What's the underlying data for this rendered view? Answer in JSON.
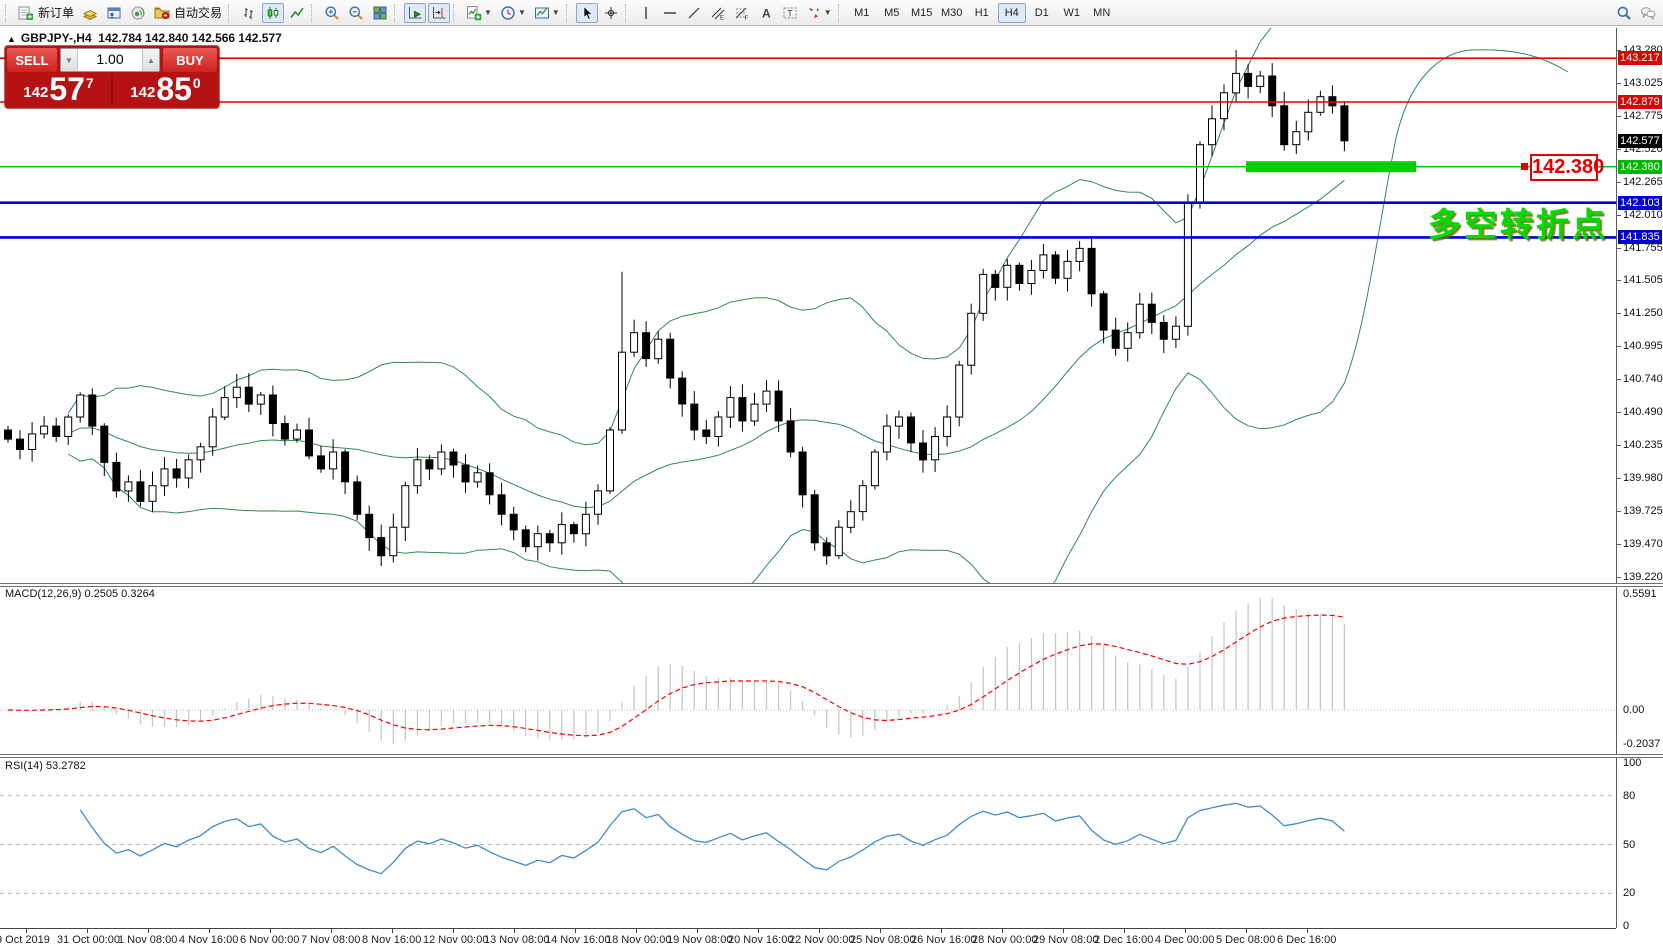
{
  "toolbar": {
    "groups": [
      {
        "items": [
          {
            "icon": "new-order",
            "label": "新订单",
            "name": "new-order-button"
          },
          {
            "icon": "market-watch",
            "name": "market-watch-button"
          },
          {
            "icon": "data-window",
            "name": "data-window-button"
          },
          {
            "icon": "navigator",
            "name": "navigator-button"
          },
          {
            "icon": "autotrading",
            "label": "自动交易",
            "name": "autotrading-button"
          }
        ]
      },
      {
        "items": [
          {
            "icon": "bar-chart",
            "name": "bar-chart-button"
          },
          {
            "icon": "candlesticks",
            "name": "candlestick-button",
            "active": true
          },
          {
            "icon": "line-chart",
            "name": "line-chart-button"
          }
        ]
      },
      {
        "items": [
          {
            "icon": "zoom-in",
            "name": "zoom-in-button"
          },
          {
            "icon": "zoom-out",
            "name": "zoom-out-button"
          },
          {
            "icon": "tile-windows",
            "name": "tile-windows-button"
          }
        ]
      },
      {
        "items": [
          {
            "icon": "auto-scroll",
            "name": "auto-scroll-button",
            "active": true
          },
          {
            "icon": "chart-shift",
            "name": "chart-shift-button",
            "active": true
          }
        ]
      },
      {
        "items": [
          {
            "icon": "indicators",
            "name": "indicators-button",
            "dropdown": true
          },
          {
            "icon": "periods",
            "name": "periods-button",
            "dropdown": true
          },
          {
            "icon": "templates",
            "name": "templates-button",
            "dropdown": true
          }
        ]
      },
      {
        "items": [
          {
            "icon": "cursor",
            "name": "cursor-button",
            "active": true
          },
          {
            "icon": "crosshair",
            "name": "crosshair-button"
          }
        ]
      },
      {
        "items": [
          {
            "icon": "vertical-line",
            "name": "vertical-line-button"
          },
          {
            "icon": "horizontal-line",
            "name": "horizontal-line-button"
          },
          {
            "icon": "trend-line",
            "name": "trend-line-button"
          },
          {
            "icon": "equidistant-channel",
            "name": "equidistant-channel-button"
          },
          {
            "icon": "fibonacci",
            "name": "fibonacci-button"
          },
          {
            "icon": "text",
            "name": "text-button"
          },
          {
            "icon": "text-label",
            "name": "text-label-button"
          },
          {
            "icon": "arrows",
            "name": "arrows-button",
            "dropdown": true
          }
        ]
      }
    ],
    "timeframes": [
      {
        "label": "M1"
      },
      {
        "label": "M5"
      },
      {
        "label": "M15"
      },
      {
        "label": "M30"
      },
      {
        "label": "H1"
      },
      {
        "label": "H4",
        "active": true
      },
      {
        "label": "D1"
      },
      {
        "label": "W1"
      },
      {
        "label": "MN"
      }
    ],
    "right": [
      {
        "icon": "search",
        "name": "search-button"
      },
      {
        "icon": "chat",
        "name": "chat-button"
      }
    ]
  },
  "title": {
    "collapse": "▲",
    "symbol": "GBPJPY-,H4",
    "ohlc": "142.784 142.840 142.566 142.577"
  },
  "quote_panel": {
    "sell_label": "SELL",
    "buy_label": "BUY",
    "volume": "1.00",
    "spinner_down": "▼",
    "spinner_up": "▲",
    "sell_price": {
      "prefix": "142",
      "big": "57",
      "sup": "7"
    },
    "buy_price": {
      "prefix": "142",
      "big": "85",
      "sup": "0"
    }
  },
  "annotation": {
    "text": "多空转折点",
    "color": "#00dc00"
  },
  "level_callout": {
    "text": "142.380"
  },
  "macd_panel": {
    "name": "MACD(12,26,9)",
    "values": "0.2505 0.3264",
    "axis": [
      "0.5591",
      "0.00",
      "-0.2037"
    ]
  },
  "rsi_panel": {
    "name": "RSI(14)",
    "value": "53.2782",
    "axis": [
      100,
      80,
      50,
      20,
      0
    ],
    "levels": [
      80,
      50,
      20
    ]
  },
  "chart_data": {
    "type": "candlestick",
    "symbol": "GBPJPY-",
    "timeframe": "H4",
    "ohlc_display": {
      "open": "142.784",
      "high": "142.840",
      "low": "142.566",
      "close": "142.577"
    },
    "price_range": [
      139.17,
      143.45
    ],
    "price_axis_ticks": [
      143.28,
      143.025,
      142.775,
      142.52,
      142.265,
      142.01,
      141.755,
      141.505,
      141.25,
      140.995,
      140.74,
      140.49,
      140.235,
      139.98,
      139.725,
      139.47,
      139.22
    ],
    "levels": [
      {
        "price": 143.217,
        "color": "#e40000",
        "tag_bg": "#dd0000",
        "width": 1.6,
        "name": "resistance-line-1"
      },
      {
        "price": 142.879,
        "color": "#e40000",
        "tag_bg": "#dd0000",
        "width": 1.6,
        "name": "resistance-line-2"
      },
      {
        "price": 142.577,
        "color": "none",
        "tag_bg": "#000000",
        "width": 0,
        "name": "current-price"
      },
      {
        "price": 142.38,
        "color": "#00cc00",
        "tag_bg": "#00b400",
        "width": 1.6,
        "name": "support-line-green"
      },
      {
        "price": 142.103,
        "color": "#0000dd",
        "tag_bg": "#0000cc",
        "width": 2.6,
        "name": "support-line-blue-1"
      },
      {
        "price": 141.835,
        "color": "#0000dd",
        "tag_bg": "#0000cc",
        "width": 2.6,
        "name": "support-line-blue-2"
      }
    ],
    "closes": [
      140.28,
      140.2,
      140.32,
      140.38,
      140.3,
      140.45,
      140.62,
      140.38,
      140.1,
      139.88,
      139.95,
      139.8,
      139.92,
      140.05,
      139.98,
      140.12,
      140.22,
      140.45,
      140.6,
      140.68,
      140.55,
      140.62,
      140.4,
      140.28,
      140.35,
      140.15,
      140.05,
      140.18,
      139.95,
      139.7,
      139.52,
      139.38,
      139.6,
      139.92,
      140.12,
      140.05,
      140.18,
      140.08,
      139.95,
      140.02,
      139.85,
      139.7,
      139.58,
      139.45,
      139.55,
      139.48,
      139.62,
      139.55,
      139.7,
      139.88,
      140.35,
      140.95,
      141.1,
      140.9,
      141.05,
      140.75,
      140.55,
      140.35,
      140.3,
      140.45,
      140.6,
      140.42,
      140.55,
      140.65,
      140.42,
      140.18,
      139.85,
      139.48,
      139.38,
      139.6,
      139.72,
      139.92,
      140.18,
      140.38,
      140.45,
      140.25,
      140.12,
      140.3,
      140.45,
      140.85,
      141.25,
      141.55,
      141.45,
      141.62,
      141.48,
      141.58,
      141.7,
      141.52,
      141.65,
      141.75,
      141.4,
      141.12,
      140.98,
      141.1,
      141.32,
      141.18,
      141.05,
      141.15,
      142.1,
      142.55,
      142.75,
      142.95,
      143.1,
      143.0,
      143.08,
      142.85,
      142.55,
      142.65,
      142.8,
      142.92,
      142.85,
      142.58
    ],
    "wick_overrides": {
      "31": {
        "l": 139.3
      },
      "51": {
        "h": 141.57
      },
      "68": {
        "l": 139.31
      },
      "102": {
        "h": 143.28
      }
    },
    "indicators": {
      "bollinger": {
        "period": 20,
        "deviation": 2,
        "color": "#2E8B57"
      },
      "macd": {
        "fast": 12,
        "slow": 26,
        "signal": 9,
        "histogram_color": "#c8c8c8",
        "signal_color": "#ff0000"
      },
      "rsi": {
        "period": 14,
        "color": "#3f8cc9"
      }
    },
    "time_labels": [
      "9 Oct 2019",
      "31 Oct 00:00",
      "1 Nov 08:00",
      "4 Nov 16:00",
      "6 Nov 00:00",
      "7 Nov 08:00",
      "8 Nov 16:00",
      "12 Nov 00:00",
      "13 Nov 08:00",
      "14 Nov 16:00",
      "18 Nov 00:00",
      "19 Nov 08:00",
      "20 Nov 16:00",
      "22 Nov 00:00",
      "25 Nov 08:00",
      "26 Nov 16:00",
      "28 Nov 00:00",
      "29 Nov 08:00",
      "2 Dec 16:00",
      "4 Dec 00:00",
      "5 Dec 08:00",
      "6 Dec 16:00"
    ]
  }
}
